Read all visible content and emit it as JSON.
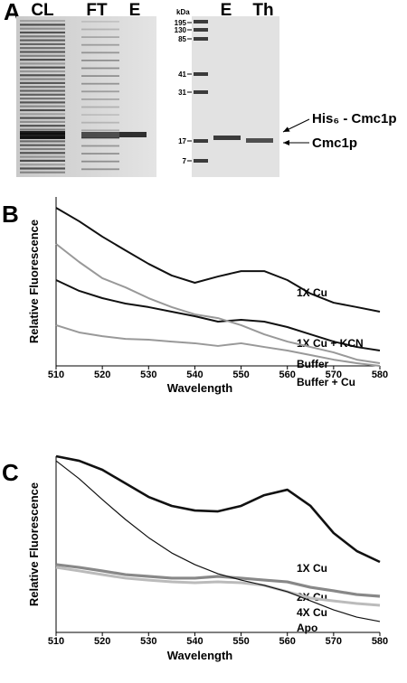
{
  "figure": {
    "panel": "A",
    "left_lanes": [
      "CL",
      "FT",
      "E"
    ],
    "right_lanes": [
      "E",
      "Th"
    ],
    "mw_unit": "kDa",
    "mw_markers": [
      "195",
      "130",
      "85",
      "41",
      "31",
      "17",
      "7"
    ],
    "proteins": [
      "His₆ - Cmc1p",
      "Cmc1p"
    ]
  },
  "chart_data": [
    {
      "type": "line",
      "panel": "B",
      "x_label": "Wavelength",
      "y_label": "Relative Fluorescence",
      "x": [
        510,
        515,
        520,
        525,
        530,
        535,
        540,
        545,
        550,
        555,
        560,
        565,
        570,
        575,
        580
      ],
      "xlim": [
        510,
        580
      ],
      "xticks": [
        510,
        520,
        530,
        540,
        550,
        560,
        570,
        580
      ],
      "ylim": [
        0,
        100
      ],
      "series": [
        {
          "name": "1X Cu",
          "color": "#111111",
          "values": [
            93.6,
            85.6,
            76.5,
            68.4,
            60.4,
            53.5,
            49.2,
            52.9,
            56.1,
            56.1,
            50.8,
            42.8,
            37.4,
            34.8,
            32.1
          ]
        },
        {
          "name": "1X Cu + KCN",
          "color": "#111111",
          "values": [
            50.8,
            44.4,
            40.1,
            36.9,
            34.8,
            32.1,
            29.4,
            26.2,
            27.3,
            26.2,
            23.0,
            18.7,
            14.4,
            11.2,
            9.1
          ]
        },
        {
          "name": "Buffer",
          "color": "#999999",
          "values": [
            72.2,
            61.5,
            51.9,
            46.5,
            40.1,
            34.8,
            30.5,
            28.3,
            24.1,
            18.7,
            14.4,
            11.2,
            8.0,
            3.7,
            1.6
          ]
        },
        {
          "name": "Buffer + Cu",
          "color": "#999999",
          "values": [
            24.1,
            19.8,
            17.6,
            16.0,
            15.5,
            14.4,
            13.4,
            11.8,
            13.4,
            11.2,
            9.1,
            6.4,
            3.7,
            1.6,
            0
          ]
        }
      ]
    },
    {
      "type": "line",
      "panel": "C",
      "x_label": "Wavelength",
      "y_label": "Relative Fluorescence",
      "x": [
        510,
        515,
        520,
        525,
        530,
        535,
        540,
        545,
        550,
        555,
        560,
        565,
        570,
        575,
        580
      ],
      "xlim": [
        510,
        580
      ],
      "xticks": [
        510,
        520,
        530,
        540,
        550,
        560,
        570,
        580
      ],
      "ylim": [
        0,
        100
      ],
      "series": [
        {
          "name": "1X Cu",
          "color": "#111111",
          "values": [
            100,
            97.4,
            92.3,
            84.6,
            76.9,
            71.8,
            69.2,
            68.7,
            71.8,
            77.9,
            81.0,
            71.8,
            56.4,
            46.2,
            40.0
          ]
        },
        {
          "name": "2X Cu",
          "color": "#888888",
          "values": [
            38.5,
            36.9,
            34.9,
            32.8,
            31.8,
            30.8,
            30.8,
            31.8,
            30.8,
            29.7,
            28.7,
            25.6,
            23.6,
            21.5,
            20.5
          ]
        },
        {
          "name": "4X Cu",
          "color": "#bbbbbb",
          "values": [
            36.9,
            34.9,
            32.8,
            30.8,
            29.7,
            28.7,
            28.2,
            28.7,
            28.2,
            26.7,
            23.1,
            19.5,
            17.9,
            16.4,
            15.4
          ]
        },
        {
          "name": "Apo",
          "color": "#111111",
          "values": [
            97.4,
            87.2,
            75.4,
            64.1,
            53.8,
            45.1,
            38.5,
            33.3,
            29.7,
            26.7,
            23.1,
            17.9,
            12.8,
            8.7,
            6.2
          ]
        }
      ]
    }
  ]
}
